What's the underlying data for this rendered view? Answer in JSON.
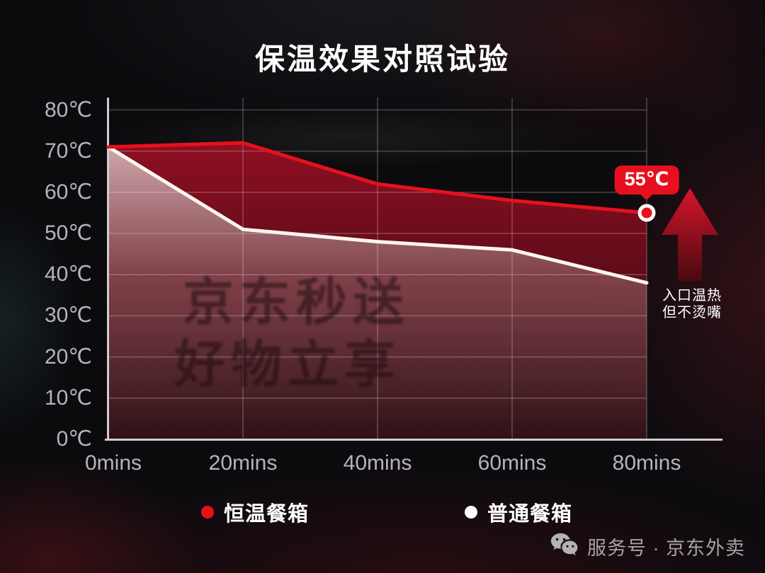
{
  "title": "保温效果对照试验",
  "chart_data": {
    "type": "line",
    "title": "保温效果对照试验",
    "categories": [
      "0mins",
      "20mins",
      "40mins",
      "60mins",
      "80mins"
    ],
    "series": [
      {
        "name": "恒温餐箱",
        "color": "#e8101e",
        "values": [
          71,
          72,
          62,
          58,
          55
        ]
      },
      {
        "name": "普通餐箱",
        "color": "#ffffff",
        "values": [
          71,
          51,
          48,
          46,
          38
        ]
      }
    ],
    "xlabel": "",
    "ylabel": "",
    "ylim": [
      0,
      80
    ],
    "y_tick_labels": [
      "80℃",
      "70℃",
      "60℃",
      "50℃",
      "40℃",
      "30℃",
      "20℃",
      "10℃",
      "0℃"
    ],
    "grid": true,
    "legend_position": "bottom",
    "annotations": [
      {
        "text": "55℃",
        "series": "恒温餐箱",
        "x": "80mins",
        "y": 55
      }
    ]
  },
  "annotation": {
    "badge": "55℃",
    "note_line1": "入口温热",
    "note_line2": "但不烫嘴"
  },
  "watermark": {
    "line1": "京东秒送",
    "line2": "好物立享"
  },
  "footer": {
    "icon": "wechat-icon",
    "text": "服务号 · 京东外卖"
  }
}
